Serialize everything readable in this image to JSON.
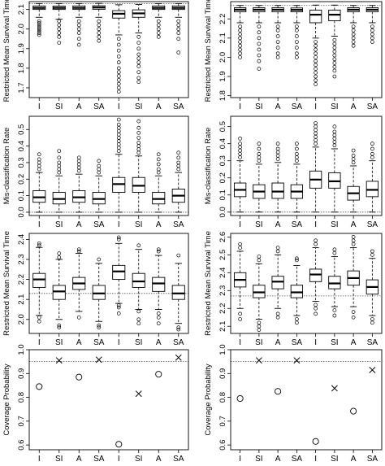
{
  "chart_data": [
    {
      "type": "boxplot",
      "ylabel": "Restricted Mean Survival Time",
      "ylim": [
        1.65,
        2.14
      ],
      "refline": 2.13,
      "yticks": [
        1.7,
        1.8,
        1.9,
        2.0,
        2.1
      ],
      "categories": [
        "I",
        "SI",
        "A",
        "SA",
        "I",
        "SI",
        "A",
        "SA"
      ],
      "boxes": [
        {
          "whislo": 2.06,
          "q1": 2.1,
          "med": 2.108,
          "q3": 2.118,
          "whishi": 2.13,
          "fliers": [
            2.04,
            2.03,
            2.02,
            2.01,
            2.0,
            1.99,
            1.98,
            1.97
          ]
        },
        {
          "whislo": 2.05,
          "q1": 2.1,
          "med": 2.108,
          "q3": 2.117,
          "whishi": 2.13,
          "fliers": [
            2.04,
            2.02,
            2.0,
            1.98,
            1.96,
            1.93
          ]
        },
        {
          "whislo": 2.06,
          "q1": 2.1,
          "med": 2.108,
          "q3": 2.118,
          "whishi": 2.13,
          "fliers": [
            2.04,
            2.02,
            2.0,
            1.98,
            1.95,
            1.92
          ]
        },
        {
          "whislo": 2.06,
          "q1": 2.101,
          "med": 2.11,
          "q3": 2.119,
          "whishi": 2.131,
          "fliers": [
            2.04,
            2.02,
            2.0,
            1.98,
            1.96,
            1.94
          ]
        },
        {
          "whislo": 1.97,
          "q1": 2.056,
          "med": 2.078,
          "q3": 2.094,
          "whishi": 2.124,
          "fliers": [
            1.95,
            1.92,
            1.89,
            1.86,
            1.83,
            1.8,
            1.78,
            1.76,
            1.74,
            1.72,
            1.7,
            1.68
          ]
        },
        {
          "whislo": 1.98,
          "q1": 2.06,
          "med": 2.08,
          "q3": 2.098,
          "whishi": 2.125,
          "fliers": [
            1.96,
            1.93,
            1.9,
            1.87,
            1.85,
            1.83,
            1.81,
            1.78,
            1.75,
            1.73
          ]
        },
        {
          "whislo": 2.06,
          "q1": 2.1,
          "med": 2.108,
          "q3": 2.118,
          "whishi": 2.13,
          "fliers": [
            2.04,
            2.02,
            2.0,
            1.98,
            1.96
          ]
        },
        {
          "whislo": 2.06,
          "q1": 2.1,
          "med": 2.108,
          "q3": 2.118,
          "whishi": 2.13,
          "fliers": [
            2.04,
            2.02,
            2.0,
            1.98,
            1.95,
            1.88
          ]
        }
      ]
    },
    {
      "type": "boxplot",
      "ylabel": "Restricted Mean Survival Time",
      "ylim": [
        1.79,
        2.29
      ],
      "refline": 2.27,
      "yticks": [
        1.8,
        1.9,
        2.0,
        2.1,
        2.2
      ],
      "categories": [
        "I",
        "SI",
        "A",
        "SA",
        "I",
        "SI",
        "A",
        "SA"
      ],
      "boxes": [
        {
          "whislo": 2.18,
          "q1": 2.237,
          "med": 2.248,
          "q3": 2.258,
          "whishi": 2.27,
          "fliers": [
            2.16,
            2.14,
            2.12,
            2.1,
            2.08,
            2.06,
            2.04,
            2.02,
            2.0
          ]
        },
        {
          "whislo": 2.18,
          "q1": 2.237,
          "med": 2.248,
          "q3": 2.258,
          "whishi": 2.27,
          "fliers": [
            2.16,
            2.13,
            2.1,
            2.07,
            2.04,
            2.01,
            1.98,
            1.94
          ]
        },
        {
          "whislo": 2.18,
          "q1": 2.237,
          "med": 2.248,
          "q3": 2.258,
          "whishi": 2.27,
          "fliers": [
            2.16,
            2.14,
            2.11,
            2.08,
            2.05,
            2.02,
            2.0
          ]
        },
        {
          "whislo": 2.18,
          "q1": 2.237,
          "med": 2.247,
          "q3": 2.257,
          "whishi": 2.27,
          "fliers": [
            2.16,
            2.14,
            2.11,
            2.08,
            2.05,
            2.02,
            2.0
          ]
        },
        {
          "whislo": 2.1,
          "q1": 2.18,
          "med": 2.222,
          "q3": 2.246,
          "whishi": 2.272,
          "fliers": [
            2.08,
            2.06,
            2.04,
            2.02,
            2.0,
            1.98,
            1.96,
            1.94,
            1.92,
            1.9,
            1.88,
            1.86
          ]
        },
        {
          "whislo": 2.11,
          "q1": 2.19,
          "med": 2.222,
          "q3": 2.246,
          "whishi": 2.272,
          "fliers": [
            2.09,
            2.07,
            2.05,
            2.03,
            2.01,
            1.99,
            1.97,
            1.95,
            1.93,
            1.9
          ]
        },
        {
          "whislo": 2.18,
          "q1": 2.237,
          "med": 2.248,
          "q3": 2.258,
          "whishi": 2.27,
          "fliers": [
            2.16,
            2.14,
            2.12,
            2.1,
            2.08,
            2.06
          ]
        },
        {
          "whislo": 2.18,
          "q1": 2.237,
          "med": 2.248,
          "q3": 2.258,
          "whishi": 2.27,
          "fliers": [
            2.16,
            2.14,
            2.12,
            2.1,
            2.08
          ]
        }
      ]
    },
    {
      "type": "boxplot",
      "ylabel": "Mis-classification Rate",
      "ylim": [
        -0.02,
        0.58
      ],
      "refline": 0.0,
      "yticks": [
        0.0,
        0.1,
        0.2,
        0.3,
        0.4,
        0.5
      ],
      "categories": [
        "I",
        "SI",
        "A",
        "SA",
        "I",
        "SI",
        "A",
        "SA"
      ],
      "boxes": [
        {
          "whislo": 0.0,
          "q1": 0.06,
          "med": 0.09,
          "q3": 0.13,
          "whishi": 0.24,
          "fliers": [
            0.26,
            0.28,
            0.3,
            0.32,
            0.35
          ]
        },
        {
          "whislo": 0.0,
          "q1": 0.05,
          "med": 0.08,
          "q3": 0.12,
          "whishi": 0.22,
          "fliers": [
            0.24,
            0.26,
            0.28,
            0.3,
            0.33,
            0.37
          ]
        },
        {
          "whislo": 0.0,
          "q1": 0.06,
          "med": 0.09,
          "q3": 0.13,
          "whishi": 0.23,
          "fliers": [
            0.25,
            0.27,
            0.29,
            0.31,
            0.33
          ]
        },
        {
          "whislo": 0.0,
          "q1": 0.05,
          "med": 0.08,
          "q3": 0.12,
          "whishi": 0.22,
          "fliers": [
            0.24,
            0.26,
            0.28,
            0.31
          ]
        },
        {
          "whislo": 0.0,
          "q1": 0.12,
          "med": 0.17,
          "q3": 0.21,
          "whishi": 0.35,
          "fliers": [
            0.37,
            0.39,
            0.41,
            0.43,
            0.45,
            0.47,
            0.49,
            0.51,
            0.53,
            0.56
          ]
        },
        {
          "whislo": 0.0,
          "q1": 0.12,
          "med": 0.16,
          "q3": 0.21,
          "whishi": 0.34,
          "fliers": [
            0.36,
            0.38,
            0.4,
            0.42,
            0.45,
            0.48,
            0.51,
            0.55
          ]
        },
        {
          "whislo": 0.0,
          "q1": 0.05,
          "med": 0.08,
          "q3": 0.12,
          "whishi": 0.22,
          "fliers": [
            0.24,
            0.26,
            0.29,
            0.32,
            0.35
          ]
        },
        {
          "whislo": 0.0,
          "q1": 0.06,
          "med": 0.1,
          "q3": 0.14,
          "whishi": 0.24,
          "fliers": [
            0.26,
            0.28,
            0.3,
            0.33,
            0.36
          ]
        }
      ]
    },
    {
      "type": "boxplot",
      "ylabel": "Mis-classification Rate",
      "ylim": [
        -0.02,
        0.56
      ],
      "refline": 0.0,
      "yticks": [
        0.0,
        0.1,
        0.2,
        0.3,
        0.4,
        0.5
      ],
      "categories": [
        "I",
        "SI",
        "A",
        "SA",
        "I",
        "SI",
        "A",
        "SA"
      ],
      "boxes": [
        {
          "whislo": 0.0,
          "q1": 0.09,
          "med": 0.13,
          "q3": 0.17,
          "whishi": 0.3,
          "fliers": [
            0.32,
            0.34,
            0.36,
            0.38,
            0.4,
            0.43
          ]
        },
        {
          "whislo": 0.0,
          "q1": 0.08,
          "med": 0.12,
          "q3": 0.16,
          "whishi": 0.28,
          "fliers": [
            0.3,
            0.32,
            0.34,
            0.37,
            0.4
          ]
        },
        {
          "whislo": 0.0,
          "q1": 0.08,
          "med": 0.12,
          "q3": 0.17,
          "whishi": 0.29,
          "fliers": [
            0.31,
            0.33,
            0.35,
            0.37,
            0.4
          ]
        },
        {
          "whislo": 0.0,
          "q1": 0.08,
          "med": 0.12,
          "q3": 0.16,
          "whishi": 0.28,
          "fliers": [
            0.3,
            0.32,
            0.34,
            0.37,
            0.4
          ]
        },
        {
          "whislo": 0.0,
          "q1": 0.14,
          "med": 0.19,
          "q3": 0.24,
          "whishi": 0.38,
          "fliers": [
            0.4,
            0.42,
            0.44,
            0.46,
            0.48,
            0.5,
            0.52
          ]
        },
        {
          "whislo": 0.0,
          "q1": 0.14,
          "med": 0.18,
          "q3": 0.23,
          "whishi": 0.37,
          "fliers": [
            0.39,
            0.41,
            0.43,
            0.45,
            0.47,
            0.5
          ]
        },
        {
          "whislo": 0.0,
          "q1": 0.07,
          "med": 0.11,
          "q3": 0.15,
          "whishi": 0.27,
          "fliers": [
            0.29,
            0.31,
            0.33,
            0.36
          ]
        },
        {
          "whislo": 0.0,
          "q1": 0.09,
          "med": 0.13,
          "q3": 0.18,
          "whishi": 0.3,
          "fliers": [
            0.32,
            0.34,
            0.37,
            0.4
          ]
        }
      ]
    },
    {
      "type": "boxplot",
      "ylabel": "Restricted Mean Survival Time",
      "ylim": [
        1.93,
        2.43
      ],
      "refline": 2.13,
      "yticks": [
        2.0,
        2.1,
        2.2,
        2.3,
        2.4
      ],
      "categories": [
        "I",
        "SI",
        "A",
        "SA",
        "I",
        "SI",
        "A",
        "SA"
      ],
      "boxes": [
        {
          "whislo": 2.02,
          "q1": 2.16,
          "med": 2.2,
          "q3": 2.23,
          "whishi": 2.36,
          "fliers": [
            2.37,
            2.38,
            2.01,
            1.99
          ]
        },
        {
          "whislo": 2.0,
          "q1": 2.1,
          "med": 2.14,
          "q3": 2.17,
          "whishi": 2.3,
          "fliers": [
            2.31,
            2.33,
            1.97,
            1.96
          ]
        },
        {
          "whislo": 2.04,
          "q1": 2.15,
          "med": 2.18,
          "q3": 2.21,
          "whishi": 2.33,
          "fliers": [
            2.34,
            2.35,
            2.01
          ]
        },
        {
          "whislo": 1.99,
          "q1": 2.1,
          "med": 2.13,
          "q3": 2.17,
          "whishi": 2.28,
          "fliers": [
            2.3,
            1.97,
            1.96
          ]
        },
        {
          "whislo": 2.08,
          "q1": 2.2,
          "med": 2.24,
          "q3": 2.27,
          "whishi": 2.38,
          "fliers": [
            2.4,
            2.41,
            2.07,
            2.06,
            2.03
          ]
        },
        {
          "whislo": 2.05,
          "q1": 2.16,
          "med": 2.19,
          "q3": 2.23,
          "whishi": 2.35,
          "fliers": [
            2.37,
            2.04,
            2.0,
            1.98
          ]
        },
        {
          "whislo": 2.05,
          "q1": 2.14,
          "med": 2.18,
          "q3": 2.21,
          "whishi": 2.32,
          "fliers": [
            2.34,
            2.35,
            2.03,
            2.01,
            1.98
          ]
        },
        {
          "whislo": 1.98,
          "q1": 2.1,
          "med": 2.13,
          "q3": 2.17,
          "whishi": 2.28,
          "fliers": [
            2.32,
            1.96,
            1.95
          ]
        }
      ]
    },
    {
      "type": "boxplot",
      "ylabel": "Restricted Mean Survival Time",
      "ylim": [
        2.06,
        2.62
      ],
      "refline": 2.27,
      "yticks": [
        2.1,
        2.2,
        2.3,
        2.4,
        2.5,
        2.6
      ],
      "categories": [
        "I",
        "SI",
        "A",
        "SA",
        "I",
        "SI",
        "A",
        "SA"
      ],
      "boxes": [
        {
          "whislo": 2.2,
          "q1": 2.32,
          "med": 2.36,
          "q3": 2.4,
          "whishi": 2.52,
          "fliers": [
            2.54,
            2.56,
            2.17,
            2.14
          ]
        },
        {
          "whislo": 2.14,
          "q1": 2.26,
          "med": 2.29,
          "q3": 2.33,
          "whishi": 2.45,
          "fliers": [
            2.47,
            2.49,
            2.12,
            2.1,
            2.08
          ]
        },
        {
          "whislo": 2.2,
          "q1": 2.31,
          "med": 2.35,
          "q3": 2.38,
          "whishi": 2.5,
          "fliers": [
            2.52,
            2.54,
            2.17,
            2.15
          ]
        },
        {
          "whislo": 2.16,
          "q1": 2.26,
          "med": 2.29,
          "q3": 2.33,
          "whishi": 2.44,
          "fliers": [
            2.47,
            2.48,
            2.14,
            2.12
          ]
        },
        {
          "whislo": 2.24,
          "q1": 2.35,
          "med": 2.39,
          "q3": 2.42,
          "whishi": 2.54,
          "fliers": [
            2.56,
            2.58,
            2.22,
            2.2,
            2.17
          ]
        },
        {
          "whislo": 2.21,
          "q1": 2.31,
          "med": 2.34,
          "q3": 2.38,
          "whishi": 2.49,
          "fliers": [
            2.51,
            2.53,
            2.19,
            2.16
          ]
        },
        {
          "whislo": 2.21,
          "q1": 2.33,
          "med": 2.37,
          "q3": 2.41,
          "whishi": 2.54,
          "fliers": [
            2.56,
            2.58,
            2.6,
            2.18,
            2.15
          ]
        },
        {
          "whislo": 2.16,
          "q1": 2.28,
          "med": 2.32,
          "q3": 2.36,
          "whishi": 2.48,
          "fliers": [
            2.5,
            2.52,
            2.14,
            2.12
          ]
        }
      ]
    },
    {
      "type": "scatter",
      "ylabel": "Coverage Probability",
      "ylim": [
        0.58,
        1.0
      ],
      "refline": 0.95,
      "yticks": [
        0.6,
        0.7,
        0.8,
        0.9,
        1.0
      ],
      "categories": [
        "I",
        "SI",
        "A",
        "SA",
        "I",
        "SI",
        "A",
        "SA"
      ],
      "values": [
        0.845,
        0.955,
        0.885,
        0.958,
        0.603,
        0.815,
        0.897,
        0.967
      ],
      "markers": [
        "circle",
        "cross",
        "circle",
        "cross",
        "circle",
        "cross",
        "circle",
        "cross"
      ]
    },
    {
      "type": "scatter",
      "ylabel": "Coverage Probability",
      "ylim": [
        0.58,
        1.0
      ],
      "refline": 0.95,
      "yticks": [
        0.6,
        0.7,
        0.8,
        0.9,
        1.0
      ],
      "categories": [
        "I",
        "SI",
        "A",
        "SA",
        "I",
        "SI",
        "A",
        "SA"
      ],
      "values": [
        0.795,
        0.955,
        0.825,
        0.955,
        0.615,
        0.838,
        0.742,
        0.915
      ],
      "markers": [
        "circle",
        "cross",
        "circle",
        "cross",
        "circle",
        "cross",
        "circle",
        "cross"
      ]
    }
  ]
}
